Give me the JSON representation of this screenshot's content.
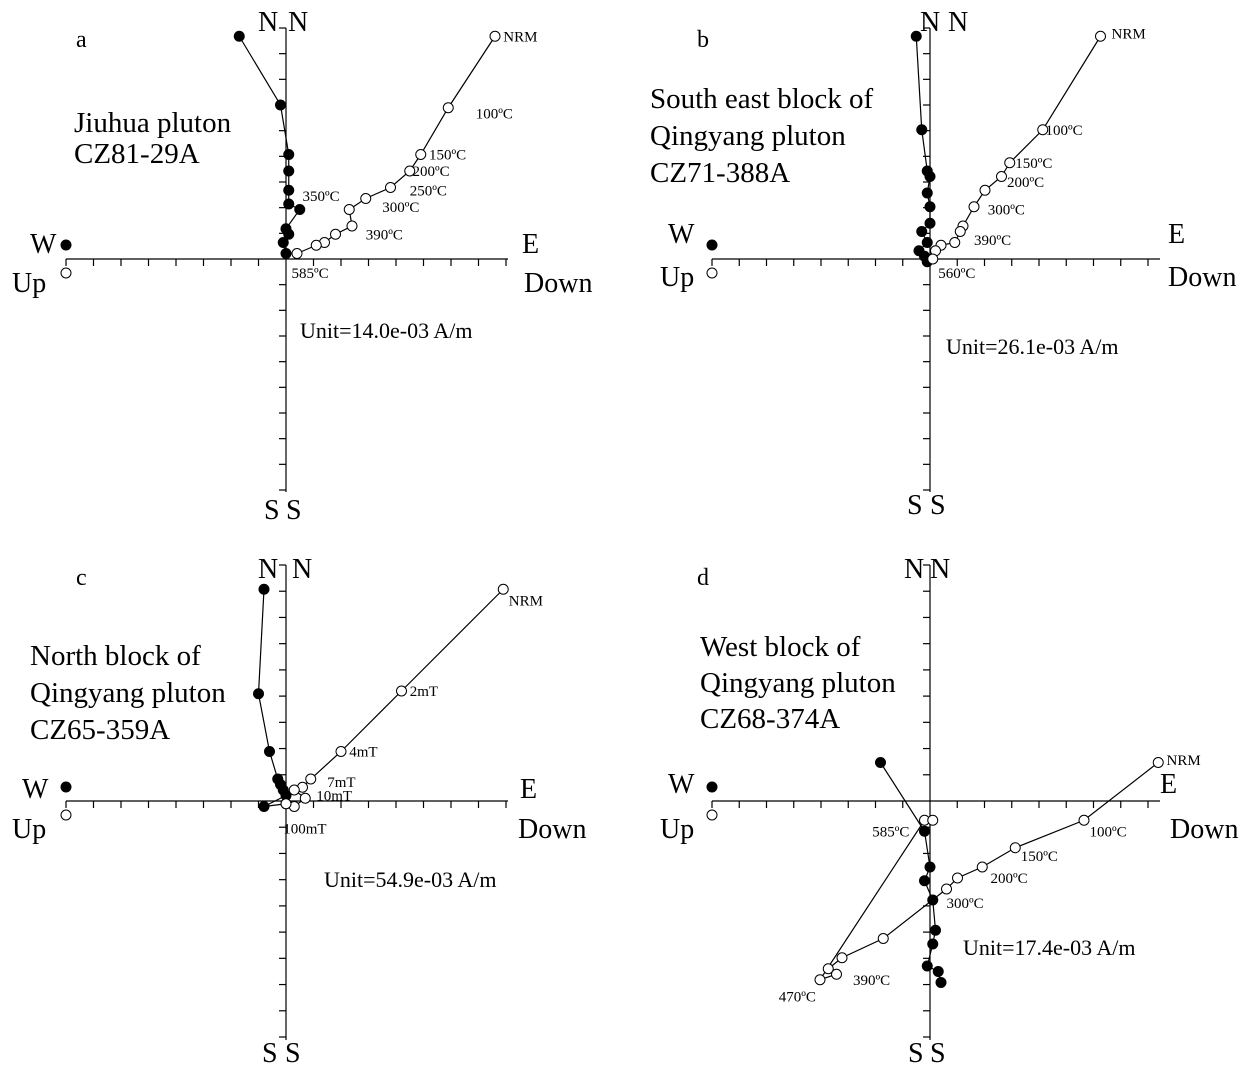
{
  "chart_data": [
    {
      "type": "scatter",
      "letter": "a",
      "title_lines": [
        "Jiuhua pluton",
        "CZ81-29A"
      ],
      "unit": "Unit=14.0e-03 A/m",
      "axis_labels": {
        "north": [
          "N",
          "N"
        ],
        "south": [
          "S",
          "S"
        ],
        "west": "W",
        "east": "E",
        "up": "Up",
        "down": "Down"
      },
      "ticks_per_side": {
        "h": 8,
        "v": 9
      },
      "filled": [
        [
          -1.7,
          8.1
        ],
        [
          -0.2,
          5.6
        ],
        [
          0.1,
          3.8
        ],
        [
          0.1,
          3.2
        ],
        [
          0.1,
          2.5
        ],
        [
          0.1,
          2.0
        ],
        [
          0.5,
          1.8
        ],
        [
          0.0,
          1.1
        ],
        [
          0.1,
          0.9
        ],
        [
          -0.1,
          0.6
        ],
        [
          0.0,
          0.2
        ]
      ],
      "open": [
        [
          7.6,
          8.1
        ],
        [
          5.9,
          5.5
        ],
        [
          4.9,
          3.8
        ],
        [
          4.5,
          3.2
        ],
        [
          3.8,
          2.6
        ],
        [
          2.9,
          2.2
        ],
        [
          2.3,
          1.8
        ],
        [
          2.4,
          1.2
        ],
        [
          1.8,
          0.9
        ],
        [
          1.4,
          0.6
        ],
        [
          1.1,
          0.5
        ],
        [
          0.4,
          0.2
        ]
      ],
      "labels": [
        {
          "text": "NRM",
          "x": 7.9,
          "y": 8.1
        },
        {
          "text": "100ºC",
          "x": 6.9,
          "y": 5.3
        },
        {
          "text": "150ºC",
          "x": 5.2,
          "y": 3.8
        },
        {
          "text": "200ºC",
          "x": 4.6,
          "y": 3.2
        },
        {
          "text": "250ºC",
          "x": 4.5,
          "y": 2.5
        },
        {
          "text": "300ºC",
          "x": 3.5,
          "y": 1.9
        },
        {
          "text": "350ºC",
          "x": 0.6,
          "y": 2.3
        },
        {
          "text": "390ºC",
          "x": 2.9,
          "y": 0.9
        },
        {
          "text": "585ºC",
          "x": 0.2,
          "y": -0.5
        }
      ]
    },
    {
      "type": "scatter",
      "letter": "b",
      "title_lines": [
        "South east block of",
        "Qingyang pluton",
        "CZ71-388A"
      ],
      "unit": "Unit=26.1e-03 A/m",
      "axis_labels": {
        "north": [
          "N",
          "N"
        ],
        "south": [
          "S",
          "S"
        ],
        "west": "W",
        "east": "E",
        "up": "Up",
        "down": "Down"
      },
      "ticks_per_side": {
        "h": 8,
        "v": 9
      },
      "filled": [
        [
          -0.5,
          8.1
        ],
        [
          -0.3,
          4.7
        ],
        [
          -0.1,
          3.2
        ],
        [
          0.0,
          3.0
        ],
        [
          -0.1,
          2.4
        ],
        [
          0.0,
          1.9
        ],
        [
          0.0,
          1.3
        ],
        [
          -0.3,
          1.0
        ],
        [
          -0.1,
          0.6
        ],
        [
          -0.4,
          0.3
        ],
        [
          -0.2,
          0.1
        ],
        [
          -0.1,
          -0.1
        ]
      ],
      "open": [
        [
          6.2,
          8.1
        ],
        [
          4.1,
          4.7
        ],
        [
          2.9,
          3.5
        ],
        [
          2.6,
          3.0
        ],
        [
          2.0,
          2.5
        ],
        [
          1.6,
          1.9
        ],
        [
          1.2,
          1.2
        ],
        [
          1.1,
          1.0
        ],
        [
          0.9,
          0.6
        ],
        [
          0.4,
          0.5
        ],
        [
          0.2,
          0.3
        ],
        [
          0.1,
          0.0
        ]
      ],
      "labels": [
        {
          "text": "NRM",
          "x": 6.6,
          "y": 8.2
        },
        {
          "text": "100ºC",
          "x": 4.2,
          "y": 4.7
        },
        {
          "text": "150ºC",
          "x": 3.1,
          "y": 3.5
        },
        {
          "text": "200ºC",
          "x": 2.8,
          "y": 2.8
        },
        {
          "text": "300ºC",
          "x": 2.1,
          "y": 1.8
        },
        {
          "text": "390ºC",
          "x": 1.6,
          "y": 0.7
        },
        {
          "text": "560ºC",
          "x": 0.3,
          "y": -0.5
        }
      ]
    },
    {
      "type": "scatter",
      "letter": "c",
      "title_lines": [
        "North block of",
        "Qingyang pluton",
        "CZ65-359A"
      ],
      "unit": "Unit=54.9e-03 A/m",
      "axis_labels": {
        "north": [
          "N",
          "N"
        ],
        "south": [
          "S",
          "S"
        ],
        "west": "W",
        "east": "E",
        "up": "Up",
        "down": "Down"
      },
      "ticks_per_side": {
        "h": 8,
        "v": 9
      },
      "filled": [
        [
          -0.8,
          7.7
        ],
        [
          -1.0,
          3.9
        ],
        [
          -0.6,
          1.8
        ],
        [
          -0.3,
          0.8
        ],
        [
          -0.2,
          0.6
        ],
        [
          -0.1,
          0.4
        ],
        [
          0.0,
          0.2
        ],
        [
          -0.8,
          -0.2
        ],
        [
          0.0,
          -0.1
        ]
      ],
      "open": [
        [
          7.9,
          7.7
        ],
        [
          4.2,
          4.0
        ],
        [
          2.0,
          1.8
        ],
        [
          0.9,
          0.8
        ],
        [
          0.6,
          0.5
        ],
        [
          0.3,
          0.4
        ],
        [
          0.7,
          0.1
        ],
        [
          0.3,
          -0.2
        ],
        [
          0.0,
          -0.1
        ]
      ],
      "labels": [
        {
          "text": "NRM",
          "x": 8.1,
          "y": 7.3
        },
        {
          "text": "2mT",
          "x": 4.5,
          "y": 4.0
        },
        {
          "text": "4mT",
          "x": 2.3,
          "y": 1.8
        },
        {
          "text": "7mT",
          "x": 1.5,
          "y": 0.7
        },
        {
          "text": "10mT",
          "x": 1.1,
          "y": 0.2
        },
        {
          "text": "100mT",
          "x": -0.1,
          "y": -1.0
        }
      ]
    },
    {
      "type": "scatter",
      "letter": "d",
      "title_lines": [
        "West block of",
        "Qingyang pluton",
        "CZ68-374A"
      ],
      "unit": "Unit=17.4e-03 A/m",
      "axis_labels": {
        "north": [
          "N",
          "N"
        ],
        "south": [
          "S",
          "S"
        ],
        "west": "W",
        "east": "E",
        "up": "Up",
        "down": "Down"
      },
      "ticks_per_side": {
        "h": 8,
        "v": 9
      },
      "filled": [
        [
          -1.8,
          1.4
        ],
        [
          -0.2,
          -1.1
        ],
        [
          0.0,
          -2.4
        ],
        [
          -0.2,
          -2.9
        ],
        [
          0.1,
          -3.6
        ],
        [
          0.2,
          -4.7
        ],
        [
          0.1,
          -5.2
        ],
        [
          -0.1,
          -6.0
        ],
        [
          0.3,
          -6.2
        ],
        [
          0.4,
          -6.6
        ]
      ],
      "open": [
        [
          8.3,
          1.4
        ],
        [
          5.6,
          -0.7
        ],
        [
          3.1,
          -1.7
        ],
        [
          1.9,
          -2.4
        ],
        [
          1.0,
          -2.8
        ],
        [
          0.6,
          -3.2
        ],
        [
          -1.7,
          -5.0
        ],
        [
          -3.2,
          -5.7
        ],
        [
          -3.7,
          -6.1
        ],
        [
          -3.4,
          -6.3
        ],
        [
          -4.0,
          -6.5
        ],
        [
          -0.2,
          -0.7
        ],
        [
          0.1,
          -0.7
        ]
      ],
      "labels": [
        {
          "text": "NRM",
          "x": 8.6,
          "y": 1.5
        },
        {
          "text": "100ºC",
          "x": 5.8,
          "y": -1.1
        },
        {
          "text": "150ºC",
          "x": 3.3,
          "y": -2.0
        },
        {
          "text": "200ºC",
          "x": 2.2,
          "y": -2.8
        },
        {
          "text": "300ºC",
          "x": 0.6,
          "y": -3.7
        },
        {
          "text": "390ºC",
          "x": -2.8,
          "y": -6.5
        },
        {
          "text": "470ºC",
          "x": -5.5,
          "y": -7.1
        },
        {
          "text": "585ºC",
          "x": -2.1,
          "y": -1.1
        }
      ]
    }
  ]
}
